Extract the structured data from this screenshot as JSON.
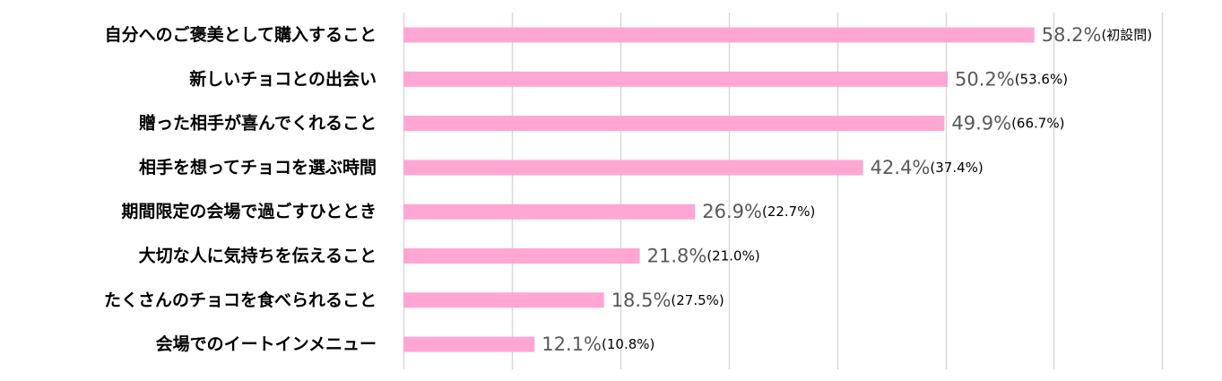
{
  "chart_data": {
    "type": "bar",
    "orientation": "horizontal",
    "title": "",
    "xlabel": "",
    "ylabel": "",
    "categories": [
      "自分へのご褒美として購入すること",
      "新しいチョコとの出会い",
      "贈った相手が喜んでくれること",
      "相手を想ってチョコを選ぶ時間",
      "期間限定の会場で過ごすひととき",
      "大切な人に気持ちを伝えること",
      "たくさんのチョコを食べられること",
      "会場でのイートインメニュー"
    ],
    "values": [
      58.2,
      50.2,
      49.9,
      42.4,
      26.9,
      21.8,
      18.5,
      12.1
    ],
    "value_labels": [
      "58.2%",
      "50.2%",
      "49.9%",
      "42.4%",
      "26.9%",
      "21.8%",
      "18.5%",
      "12.1%"
    ],
    "previous_labels": [
      "(初設問)",
      "(53.6%)",
      "(66.7%)",
      "(37.4%)",
      "(22.7%)",
      "(21.0%)",
      "(27.5%)",
      "(10.8%)"
    ],
    "xlim": [
      0,
      70
    ],
    "grid": true,
    "legend": "none",
    "colors": {
      "bar": "#ffa6d2",
      "grid": "#d9d9d9",
      "value_text": "#595959",
      "category_text": "#000000"
    }
  }
}
